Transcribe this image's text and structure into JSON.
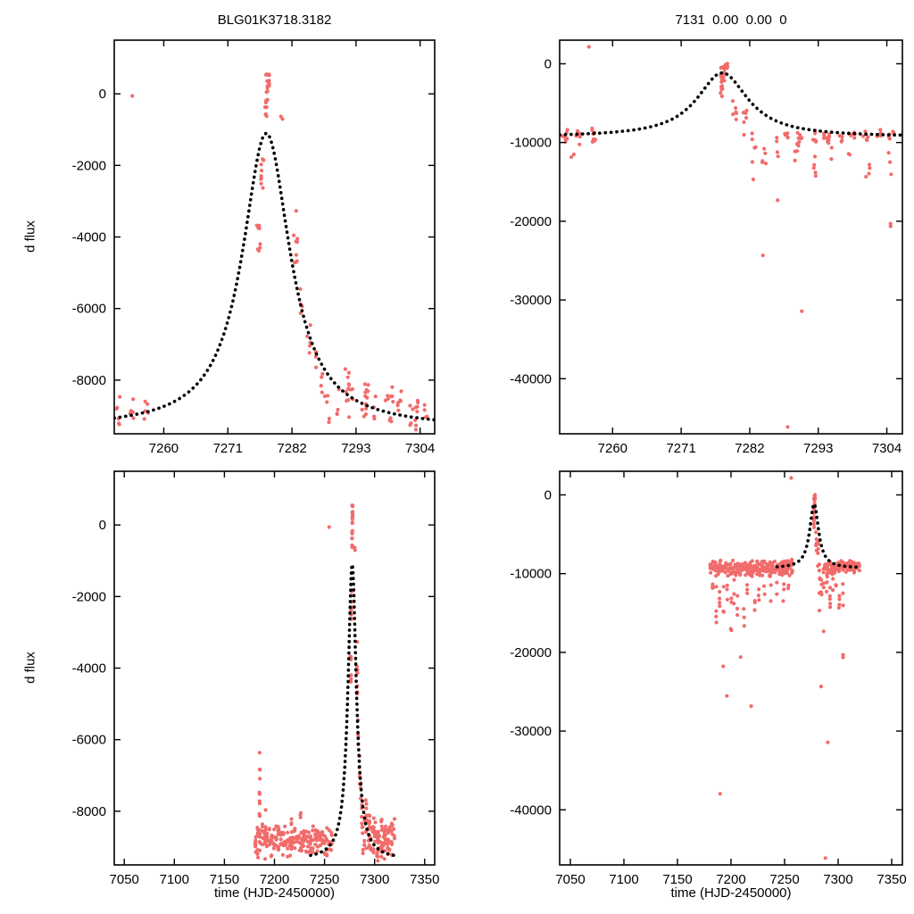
{
  "figure": {
    "background": "#ffffff",
    "point_color": "#f26b6b",
    "curve_color": "#000000",
    "frame_color": "#000000"
  },
  "chart_data": [
    {
      "id": "top_left",
      "type": "scatter",
      "title": "BLG01K3718.3182",
      "xlabel": "",
      "ylabel": "d flux",
      "xlim": [
        7251.5,
        7306.5
      ],
      "ylim": [
        -9500,
        1500
      ],
      "xticks": [
        7260,
        7271,
        7282,
        7293,
        7304
      ],
      "yticks": [
        0,
        -2000,
        -4000,
        -6000,
        -8000
      ],
      "grid": false,
      "legend": "none",
      "dataset": "flux_small",
      "model": {
        "kind": "microlensing-peak",
        "t0": 7277.6,
        "width": 5.0,
        "baseline": -9350,
        "peak": -1100
      },
      "curve_range": [
        7251.5,
        7306.5
      ]
    },
    {
      "id": "top_right",
      "type": "scatter",
      "title": "7131  0.00  0.00  0",
      "xlabel": "",
      "ylabel": "",
      "xlim": [
        7251.5,
        7306.5
      ],
      "ylim": [
        -47000,
        3000
      ],
      "xticks": [
        7260,
        7271,
        7282,
        7293,
        7304
      ],
      "yticks": [
        0,
        -10000,
        -20000,
        -30000,
        -40000
      ],
      "grid": false,
      "legend": "none",
      "dataset": "flux_large",
      "model": {
        "kind": "microlensing-peak",
        "t0": 7277.6,
        "width": 5.0,
        "baseline": -9300,
        "peak": -1150
      },
      "curve_range": [
        7251.5,
        7306.5
      ]
    },
    {
      "id": "bottom_left",
      "type": "scatter",
      "title": "",
      "xlabel": "time (HJD-2450000)",
      "ylabel": "d flux",
      "xlim": [
        7040,
        7360
      ],
      "ylim": [
        -9500,
        1500
      ],
      "xticks": [
        7050,
        7100,
        7150,
        7200,
        7250,
        7300,
        7350
      ],
      "yticks": [
        0,
        -2000,
        -4000,
        -6000,
        -8000
      ],
      "grid": false,
      "legend": "none",
      "dataset": "flux_small",
      "model": {
        "kind": "microlensing-peak",
        "t0": 7277.6,
        "width": 5.0,
        "baseline": -9350,
        "peak": -1100
      },
      "curve_range": [
        7236,
        7324
      ]
    },
    {
      "id": "bottom_right",
      "type": "scatter",
      "title": "",
      "xlabel": "time (HJD-2450000)",
      "ylabel": "",
      "xlim": [
        7040,
        7360
      ],
      "ylim": [
        -47000,
        3000
      ],
      "xticks": [
        7050,
        7100,
        7150,
        7200,
        7250,
        7300,
        7350
      ],
      "yticks": [
        0,
        -10000,
        -20000,
        -30000,
        -40000
      ],
      "grid": false,
      "legend": "none",
      "dataset": "flux_large",
      "model": {
        "kind": "microlensing-peak",
        "t0": 7277.6,
        "width": 5.0,
        "baseline": -9300,
        "peak": -1150
      },
      "curve_range": [
        7243,
        7320
      ]
    }
  ],
  "datasets": {
    "flux_small": {
      "seed": 7,
      "night_specs": [
        {
          "x0": 7181,
          "x1": 7257,
          "step": 2.3,
          "n": 7,
          "ymin": -9350,
          "ymax": -8330,
          "xjitter": 0.9
        },
        {
          "x0": 7288,
          "x1": 7320,
          "step": 2.1,
          "n": 6,
          "ymin": -9380,
          "ymax": -8100,
          "xjitter": 0.9
        }
      ],
      "clusters": [
        [
          7185.2,
          -9200,
          -6150,
          10
        ],
        [
          7191.0,
          -9300,
          -7900,
          6
        ],
        [
          7204.0,
          -9250,
          -8000,
          6
        ],
        [
          7217.0,
          -9300,
          -7950,
          7
        ],
        [
          7226.0,
          -9200,
          -8050,
          5
        ],
        [
          7276.3,
          -4520,
          -3480,
          8
        ],
        [
          7276.9,
          -2680,
          -1750,
          9
        ],
        [
          7277.5,
          -700,
          -80,
          6
        ],
        [
          7277.8,
          -260,
          560,
          20
        ],
        [
          7280.4,
          -750,
          -520,
          2
        ],
        [
          7282.6,
          -4800,
          -3150,
          9
        ],
        [
          7283.7,
          -6150,
          -5250,
          4
        ],
        [
          7284.9,
          -7250,
          -6350,
          5
        ],
        [
          7286.3,
          -7800,
          -7050,
          4
        ],
        [
          7287.2,
          -8500,
          -7700,
          4
        ],
        [
          7291.5,
          -8950,
          -7650,
          8
        ],
        [
          7294.8,
          -9100,
          -7750,
          7
        ],
        [
          7299.0,
          -9350,
          -8150,
          7
        ],
        [
          7303.5,
          -9400,
          -8250,
          8
        ],
        [
          7307.0,
          -9300,
          -8300,
          6
        ],
        [
          7310.0,
          -9350,
          -8200,
          7
        ],
        [
          7313.5,
          -9300,
          -8350,
          6
        ],
        [
          7317.0,
          -9380,
          -8300,
          7
        ]
      ],
      "points": [
        [
          7254.6,
          -60
        ]
      ]
    },
    "flux_large": {
      "seed": 11,
      "night_specs": [
        {
          "x0": 7181,
          "x1": 7257,
          "step": 2.3,
          "n": 8,
          "ymin": -10400,
          "ymax": -8150,
          "xjitter": 0.9
        },
        {
          "x0": 7288,
          "x1": 7320,
          "step": 2.1,
          "n": 7,
          "ymin": -10100,
          "ymax": -8250,
          "xjitter": 0.9
        }
      ],
      "clusters": [
        [
          7183.0,
          -14800,
          -10600,
          4
        ],
        [
          7186.0,
          -17800,
          -11000,
          4
        ],
        [
          7189.5,
          -16500,
          -10800,
          4
        ],
        [
          7190.2,
          -38400,
          -37900,
          1
        ],
        [
          7193.0,
          -21800,
          -20600,
          1
        ],
        [
          7193.2,
          -15000,
          -10800,
          3
        ],
        [
          7196.0,
          -25600,
          -24800,
          1
        ],
        [
          7196.5,
          -16000,
          -10800,
          3
        ],
        [
          7200.0,
          -18200,
          -11000,
          4
        ],
        [
          7203.0,
          -14500,
          -10700,
          3
        ],
        [
          7206.0,
          -16500,
          -10800,
          3
        ],
        [
          7209.0,
          -20800,
          -19800,
          1
        ],
        [
          7212.0,
          -17200,
          -11000,
          3
        ],
        [
          7215.0,
          -14200,
          -10600,
          3
        ],
        [
          7219.0,
          -27800,
          -26800,
          1
        ],
        [
          7222.0,
          -15500,
          -10700,
          3
        ],
        [
          7226.0,
          -13500,
          -10600,
          3
        ],
        [
          7231.0,
          -12800,
          -10600,
          2
        ],
        [
          7237.0,
          -13500,
          -10700,
          2
        ],
        [
          7243.0,
          -12800,
          -10600,
          2
        ],
        [
          7249.0,
          -13500,
          -10700,
          3
        ],
        [
          7253.5,
          -12900,
          -11000,
          2
        ],
        [
          7277.3,
          -4300,
          -2700,
          6
        ],
        [
          7277.7,
          -2500,
          -300,
          15
        ],
        [
          7278.1,
          -900,
          300,
          6
        ],
        [
          7279.6,
          -7200,
          -4400,
          6
        ],
        [
          7281.2,
          -9600,
          -5800,
          6
        ],
        [
          7282.7,
          -14800,
          -8200,
          6
        ],
        [
          7284.2,
          -24800,
          -24200,
          1
        ],
        [
          7284.3,
          -12800,
          -9000,
          5
        ],
        [
          7286.2,
          -17600,
          -16800,
          1
        ],
        [
          7286.3,
          -12200,
          -9000,
          4
        ],
        [
          7288.2,
          -46200,
          -45800,
          1
        ],
        [
          7289.5,
          -13200,
          -9100,
          5
        ],
        [
          7290.6,
          -31600,
          -31100,
          1
        ],
        [
          7292.3,
          -15600,
          -9100,
          5
        ],
        [
          7295.0,
          -12200,
          -8900,
          5
        ],
        [
          7298.0,
          -11600,
          -8900,
          4
        ],
        [
          7301.0,
          -14600,
          -9100,
          4
        ],
        [
          7304.3,
          -20700,
          -19300,
          2
        ],
        [
          7304.5,
          -15000,
          -9100,
          4
        ]
      ],
      "points": [
        [
          7256.2,
          2150
        ]
      ]
    }
  }
}
